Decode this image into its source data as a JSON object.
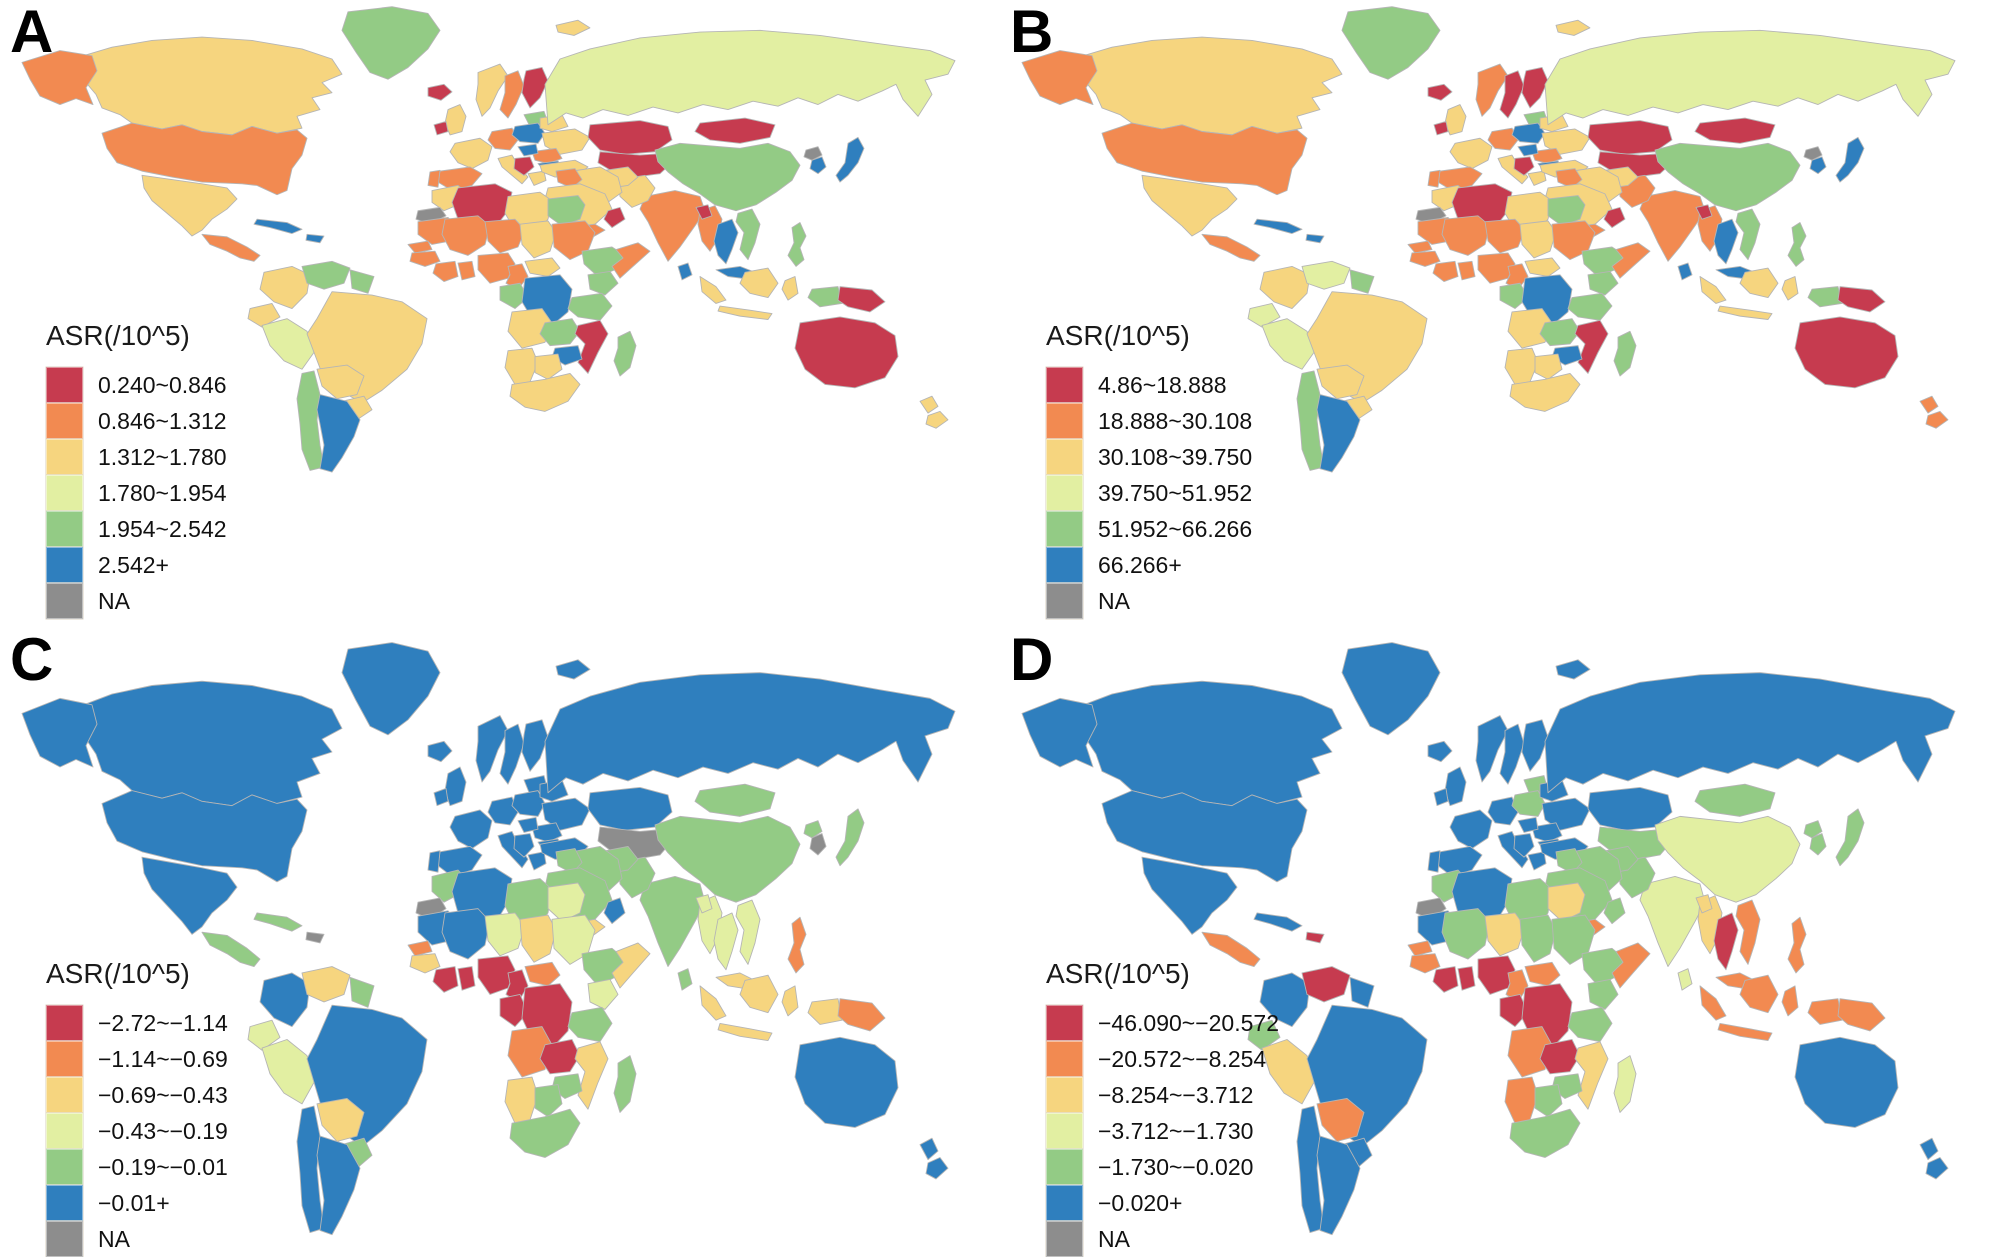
{
  "figure": {
    "type": "choropleth-world-map-figure",
    "panel_count": 4
  },
  "palette": {
    "red": "#c63b4f",
    "orange": "#f28a51",
    "sandy": "#f6d57f",
    "lime": "#e2efa2",
    "green": "#93cb85",
    "blue": "#2f7fbe",
    "na": "#8d8d8d",
    "border": "#b5b5b5"
  },
  "panels": [
    {
      "label": "A",
      "legend_title": "ASR(/10^5)",
      "legend": [
        {
          "label": "0.240~0.846",
          "color": "red"
        },
        {
          "label": "0.846~1.312",
          "color": "orange"
        },
        {
          "label": "1.312~1.780",
          "color": "sandy"
        },
        {
          "label": "1.780~1.954",
          "color": "lime"
        },
        {
          "label": "1.954~2.542",
          "color": "green"
        },
        {
          "label": "2.542+",
          "color": "blue"
        },
        {
          "label": "NA",
          "color": "na"
        }
      ],
      "regions": {
        "greenland": "green",
        "iceland": "red",
        "svalbard": "sandy",
        "canada": "sandy",
        "alaska": "orange",
        "usa": "orange",
        "mexico": "sandy",
        "centralamerica": "orange",
        "cuba": "blue",
        "hispaniola": "blue",
        "colombia": "sandy",
        "venezuela": "green",
        "guyanas": "green",
        "ecuador": "sandy",
        "peru": "lime",
        "brazil": "sandy",
        "bolivia": "sandy",
        "paraguay": "sandy",
        "chile": "green",
        "argentina": "blue",
        "uk": "sandy",
        "ireland": "red",
        "norway": "sandy",
        "sweden": "orange",
        "finland": "red",
        "baltics": "green",
        "france": "sandy",
        "spain": "orange",
        "portugal": "orange",
        "germany": "orange",
        "poland": "blue",
        "belarus": "sandy",
        "ukraine": "sandy",
        "romania": "orange",
        "bulgaria": "blue",
        "hungary": "blue",
        "italy": "sandy",
        "balkans": "red",
        "greece": "sandy",
        "turkey": "sandy",
        "russia": "lime",
        "kazakhstan": "red",
        "centralasia": "red",
        "mongolia": "red",
        "china": "green",
        "japan": "blue",
        "korea": "blue",
        "northkorea": "na",
        "india": "orange",
        "pakistan": "sandy",
        "afghanistan": "sandy",
        "iran": "sandy",
        "iraq": "orange",
        "saudi": "sandy",
        "yemen": "orange",
        "oman": "red",
        "myanmar": "orange",
        "thailand": "blue",
        "vietnam": "green",
        "malaysia": "blue",
        "sumatra": "sandy",
        "java": "sandy",
        "borneo": "sandy",
        "sulawesi": "sandy",
        "westpapua": "green",
        "png": "red",
        "philippines": "green",
        "srilanka": "blue",
        "bangladesh": "red",
        "morocco": "sandy",
        "westsahara": "na",
        "algeria": "red",
        "libya": "sandy",
        "egypt": "green",
        "mauritania": "orange",
        "mali": "orange",
        "niger": "orange",
        "chad": "sandy",
        "sudan": "orange",
        "ethiopia": "green",
        "somalia": "orange",
        "senegal": "orange",
        "guinea": "orange",
        "ivorycoast": "orange",
        "ghana": "orange",
        "nigeria": "orange",
        "cameroon": "orange",
        "car": "sandy",
        "gaboncongo": "green",
        "drc": "blue",
        "kenya": "green",
        "tanzania": "green",
        "angola": "sandy",
        "zambia": "green",
        "mozambique": "red",
        "zimbabwe": "blue",
        "namibia": "sandy",
        "botswana": "sandy",
        "southafrica": "sandy",
        "madagascar": "green",
        "australia": "red",
        "newzealand": "sandy"
      }
    },
    {
      "label": "B",
      "legend_title": "ASR(/10^5)",
      "legend": [
        {
          "label": "4.86~18.888",
          "color": "red"
        },
        {
          "label": "18.888~30.108",
          "color": "orange"
        },
        {
          "label": "30.108~39.750",
          "color": "sandy"
        },
        {
          "label": "39.750~51.952",
          "color": "lime"
        },
        {
          "label": "51.952~66.266",
          "color": "green"
        },
        {
          "label": "66.266+",
          "color": "blue"
        },
        {
          "label": "NA",
          "color": "na"
        }
      ],
      "regions": {
        "greenland": "green",
        "iceland": "red",
        "svalbard": "sandy",
        "canada": "sandy",
        "alaska": "orange",
        "usa": "orange",
        "mexico": "sandy",
        "centralamerica": "orange",
        "cuba": "blue",
        "hispaniola": "blue",
        "colombia": "sandy",
        "venezuela": "lime",
        "guyanas": "green",
        "ecuador": "lime",
        "peru": "lime",
        "brazil": "sandy",
        "bolivia": "sandy",
        "paraguay": "sandy",
        "chile": "green",
        "argentina": "blue",
        "uk": "sandy",
        "ireland": "red",
        "norway": "orange",
        "sweden": "red",
        "finland": "red",
        "baltics": "green",
        "france": "sandy",
        "spain": "orange",
        "portugal": "orange",
        "germany": "orange",
        "poland": "blue",
        "belarus": "sandy",
        "ukraine": "sandy",
        "romania": "orange",
        "bulgaria": "blue",
        "hungary": "blue",
        "italy": "sandy",
        "balkans": "red",
        "greece": "sandy",
        "turkey": "sandy",
        "russia": "lime",
        "kazakhstan": "red",
        "centralasia": "red",
        "mongolia": "red",
        "china": "green",
        "japan": "blue",
        "korea": "blue",
        "northkorea": "na",
        "india": "orange",
        "pakistan": "orange",
        "afghanistan": "sandy",
        "iran": "sandy",
        "iraq": "orange",
        "saudi": "sandy",
        "yemen": "orange",
        "oman": "red",
        "myanmar": "orange",
        "thailand": "blue",
        "vietnam": "green",
        "malaysia": "blue",
        "sumatra": "sandy",
        "java": "sandy",
        "borneo": "sandy",
        "sulawesi": "sandy",
        "westpapua": "green",
        "png": "red",
        "philippines": "green",
        "srilanka": "blue",
        "bangladesh": "red",
        "morocco": "sandy",
        "westsahara": "na",
        "algeria": "red",
        "libya": "sandy",
        "egypt": "green",
        "mauritania": "orange",
        "mali": "orange",
        "niger": "orange",
        "chad": "sandy",
        "sudan": "orange",
        "ethiopia": "green",
        "somalia": "orange",
        "senegal": "orange",
        "guinea": "orange",
        "ivorycoast": "orange",
        "ghana": "orange",
        "nigeria": "orange",
        "cameroon": "orange",
        "car": "sandy",
        "gaboncongo": "green",
        "drc": "blue",
        "kenya": "green",
        "tanzania": "green",
        "angola": "sandy",
        "zambia": "green",
        "mozambique": "red",
        "zimbabwe": "blue",
        "namibia": "sandy",
        "botswana": "sandy",
        "southafrica": "sandy",
        "madagascar": "green",
        "australia": "red",
        "newzealand": "orange"
      }
    },
    {
      "label": "C",
      "legend_title": "ASR(/10^5)",
      "legend": [
        {
          "label": "−2.72~−1.14",
          "color": "red"
        },
        {
          "label": "−1.14~−0.69",
          "color": "orange"
        },
        {
          "label": "−0.69~−0.43",
          "color": "sandy"
        },
        {
          "label": "−0.43~−0.19",
          "color": "lime"
        },
        {
          "label": "−0.19~−0.01",
          "color": "green"
        },
        {
          "label": "−0.01+",
          "color": "blue"
        },
        {
          "label": "NA",
          "color": "na"
        }
      ],
      "regions": {
        "greenland": "blue",
        "iceland": "blue",
        "svalbard": "blue",
        "canada": "blue",
        "alaska": "blue",
        "usa": "blue",
        "mexico": "blue",
        "centralamerica": "green",
        "cuba": "green",
        "hispaniola": "na",
        "colombia": "blue",
        "venezuela": "sandy",
        "guyanas": "green",
        "ecuador": "lime",
        "peru": "lime",
        "brazil": "blue",
        "bolivia": "sandy",
        "paraguay": "green",
        "chile": "blue",
        "argentina": "blue",
        "uk": "blue",
        "ireland": "blue",
        "norway": "blue",
        "sweden": "blue",
        "finland": "blue",
        "baltics": "blue",
        "france": "blue",
        "spain": "blue",
        "portugal": "blue",
        "germany": "blue",
        "poland": "blue",
        "belarus": "blue",
        "ukraine": "blue",
        "romania": "blue",
        "bulgaria": "blue",
        "hungary": "blue",
        "italy": "blue",
        "balkans": "blue",
        "greece": "blue",
        "turkey": "blue",
        "russia": "blue",
        "kazakhstan": "blue",
        "centralasia": "na",
        "mongolia": "green",
        "china": "green",
        "japan": "green",
        "korea": "na",
        "northkorea": "green",
        "india": "green",
        "pakistan": "green",
        "afghanistan": "green",
        "iran": "green",
        "iraq": "green",
        "saudi": "green",
        "yemen": "sandy",
        "oman": "blue",
        "myanmar": "lime",
        "thailand": "lime",
        "vietnam": "lime",
        "malaysia": "sandy",
        "sumatra": "sandy",
        "java": "sandy",
        "borneo": "sandy",
        "sulawesi": "sandy",
        "westpapua": "sandy",
        "png": "orange",
        "philippines": "orange",
        "srilanka": "green",
        "bangladesh": "lime",
        "morocco": "green",
        "westsahara": "na",
        "algeria": "blue",
        "libya": "green",
        "egypt": "lime",
        "mauritania": "blue",
        "mali": "blue",
        "niger": "lime",
        "chad": "sandy",
        "sudan": "lime",
        "ethiopia": "green",
        "somalia": "sandy",
        "senegal": "orange",
        "guinea": "sandy",
        "ivorycoast": "red",
        "ghana": "red",
        "nigeria": "red",
        "cameroon": "red",
        "car": "orange",
        "gaboncongo": "red",
        "drc": "red",
        "kenya": "lime",
        "tanzania": "green",
        "angola": "orange",
        "zambia": "red",
        "mozambique": "sandy",
        "zimbabwe": "green",
        "namibia": "sandy",
        "botswana": "green",
        "southafrica": "green",
        "madagascar": "green",
        "australia": "blue",
        "newzealand": "blue"
      }
    },
    {
      "label": "D",
      "legend_title": "ASR(/10^5)",
      "legend": [
        {
          "label": "−46.090~−20.572",
          "color": "red"
        },
        {
          "label": "−20.572~−8.254",
          "color": "orange"
        },
        {
          "label": "−8.254~−3.712",
          "color": "sandy"
        },
        {
          "label": "−3.712~−1.730",
          "color": "lime"
        },
        {
          "label": "−1.730~−0.020",
          "color": "green"
        },
        {
          "label": "−0.020+",
          "color": "blue"
        },
        {
          "label": "NA",
          "color": "na"
        }
      ],
      "regions": {
        "greenland": "blue",
        "iceland": "blue",
        "svalbard": "blue",
        "canada": "blue",
        "alaska": "blue",
        "usa": "blue",
        "mexico": "blue",
        "centralamerica": "orange",
        "cuba": "blue",
        "hispaniola": "red",
        "colombia": "blue",
        "venezuela": "red",
        "guyanas": "blue",
        "ecuador": "green",
        "peru": "sandy",
        "brazil": "blue",
        "bolivia": "orange",
        "paraguay": "blue",
        "chile": "blue",
        "argentina": "blue",
        "uk": "blue",
        "ireland": "blue",
        "norway": "blue",
        "sweden": "blue",
        "finland": "blue",
        "baltics": "green",
        "france": "blue",
        "spain": "blue",
        "portugal": "blue",
        "germany": "blue",
        "poland": "green",
        "belarus": "blue",
        "ukraine": "blue",
        "romania": "blue",
        "bulgaria": "blue",
        "hungary": "blue",
        "italy": "blue",
        "balkans": "blue",
        "greece": "blue",
        "turkey": "blue",
        "russia": "blue",
        "kazakhstan": "blue",
        "centralasia": "green",
        "mongolia": "green",
        "china": "lime",
        "japan": "green",
        "korea": "green",
        "northkorea": "green",
        "india": "lime",
        "pakistan": "green",
        "afghanistan": "green",
        "iran": "green",
        "iraq": "green",
        "saudi": "green",
        "yemen": "orange",
        "oman": "green",
        "myanmar": "sandy",
        "thailand": "red",
        "vietnam": "orange",
        "malaysia": "orange",
        "sumatra": "orange",
        "java": "orange",
        "borneo": "orange",
        "sulawesi": "orange",
        "westpapua": "orange",
        "png": "orange",
        "philippines": "orange",
        "srilanka": "lime",
        "bangladesh": "sandy",
        "morocco": "green",
        "westsahara": "na",
        "algeria": "blue",
        "libya": "green",
        "egypt": "sandy",
        "mauritania": "blue",
        "mali": "green",
        "niger": "sandy",
        "chad": "green",
        "sudan": "green",
        "ethiopia": "green",
        "somalia": "orange",
        "senegal": "orange",
        "guinea": "orange",
        "ivorycoast": "red",
        "ghana": "red",
        "nigeria": "red",
        "cameroon": "orange",
        "car": "orange",
        "gaboncongo": "red",
        "drc": "red",
        "kenya": "green",
        "tanzania": "green",
        "angola": "orange",
        "zambia": "red",
        "mozambique": "sandy",
        "zimbabwe": "green",
        "namibia": "orange",
        "botswana": "green",
        "southafrica": "green",
        "madagascar": "lime",
        "australia": "blue",
        "newzealand": "blue"
      }
    }
  ]
}
